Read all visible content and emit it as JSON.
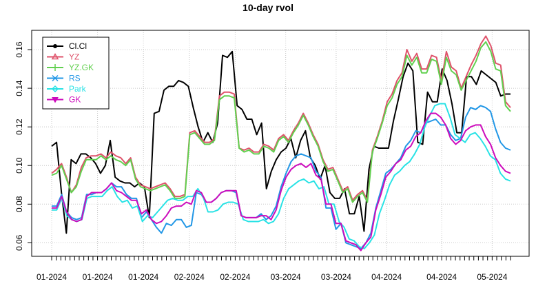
{
  "chart_data": {
    "type": "line",
    "title": "10-day rvol",
    "xlabel": "",
    "ylabel": "",
    "ylim": [
      0.053,
      0.17
    ],
    "grid": true,
    "legend_position": "top-left",
    "yticks": [
      0.06,
      0.08,
      0.1,
      0.12,
      0.14,
      0.16
    ],
    "ytick_labels": [
      "0.06",
      "0.08",
      "0.10",
      "0.12",
      "0.14",
      "0.16"
    ],
    "xtick_labels": [
      "01-2024",
      "01-2024",
      "01-2024",
      "02-2024",
      "02-2024",
      "03-2024",
      "03-2024",
      "04-2024",
      "04-2024",
      "05-2024"
    ],
    "xtick_label_positions": [
      0,
      10,
      20,
      30,
      40,
      51,
      62,
      73,
      85,
      96
    ],
    "minor_tick_count": 101,
    "series": [
      {
        "name": "Cl.Cl",
        "color": "#000000",
        "symbol": "circle",
        "values": [
          0.11,
          0.112,
          0.086,
          0.065,
          0.103,
          0.101,
          0.106,
          0.106,
          0.104,
          0.101,
          0.096,
          0.1,
          0.113,
          0.094,
          0.092,
          0.091,
          0.091,
          0.089,
          0.091,
          0.089,
          0.073,
          0.127,
          0.128,
          0.139,
          0.141,
          0.141,
          0.144,
          0.143,
          0.141,
          0.13,
          0.12,
          0.112,
          0.117,
          0.112,
          0.122,
          0.157,
          0.156,
          0.159,
          0.131,
          0.129,
          0.124,
          0.124,
          0.116,
          0.122,
          0.088,
          0.097,
          0.103,
          0.107,
          0.109,
          0.114,
          0.104,
          0.113,
          0.118,
          0.104,
          0.1,
          0.093,
          0.1,
          0.086,
          0.083,
          0.083,
          0.088,
          0.075,
          0.075,
          0.084,
          0.066,
          0.098,
          0.11,
          0.109,
          0.109,
          0.109,
          0.123,
          0.134,
          0.146,
          0.153,
          0.149,
          0.112,
          0.111,
          0.138,
          0.133,
          0.133,
          0.15,
          0.144,
          0.132,
          0.117,
          0.117,
          0.146,
          0.146,
          0.142,
          0.149,
          0.147,
          0.145,
          0.143,
          0.136,
          0.137,
          0.137
        ]
      },
      {
        "name": "YZ",
        "color": "#DF536B",
        "symbol": "triangle-up",
        "values": [
          0.096,
          0.098,
          0.101,
          0.094,
          0.086,
          0.09,
          0.099,
          0.104,
          0.105,
          0.105,
          0.106,
          0.104,
          0.107,
          0.105,
          0.104,
          0.101,
          0.104,
          0.094,
          0.09,
          0.089,
          0.088,
          0.089,
          0.09,
          0.091,
          0.088,
          0.084,
          0.084,
          0.085,
          0.117,
          0.118,
          0.115,
          0.112,
          0.112,
          0.114,
          0.136,
          0.138,
          0.138,
          0.137,
          0.109,
          0.108,
          0.109,
          0.107,
          0.107,
          0.111,
          0.11,
          0.108,
          0.114,
          0.116,
          0.113,
          0.118,
          0.122,
          0.127,
          0.122,
          0.116,
          0.111,
          0.103,
          0.098,
          0.099,
          0.093,
          0.087,
          0.089,
          0.082,
          0.085,
          0.087,
          0.082,
          0.108,
          0.115,
          0.123,
          0.133,
          0.137,
          0.144,
          0.148,
          0.16,
          0.154,
          0.158,
          0.15,
          0.15,
          0.157,
          0.156,
          0.144,
          0.159,
          0.151,
          0.149,
          0.14,
          0.146,
          0.152,
          0.157,
          0.163,
          0.167,
          0.162,
          0.153,
          0.152,
          0.133,
          0.13
        ]
      },
      {
        "name": "YZ.GK",
        "color": "#61D04F",
        "symbol": "plus",
        "values": [
          0.095,
          0.096,
          0.1,
          0.093,
          0.086,
          0.089,
          0.097,
          0.103,
          0.103,
          0.103,
          0.105,
          0.103,
          0.105,
          0.103,
          0.102,
          0.1,
          0.103,
          0.093,
          0.089,
          0.088,
          0.087,
          0.088,
          0.089,
          0.09,
          0.087,
          0.083,
          0.083,
          0.084,
          0.116,
          0.117,
          0.114,
          0.111,
          0.111,
          0.113,
          0.134,
          0.136,
          0.136,
          0.135,
          0.109,
          0.107,
          0.108,
          0.106,
          0.106,
          0.11,
          0.109,
          0.107,
          0.113,
          0.115,
          0.112,
          0.117,
          0.121,
          0.126,
          0.121,
          0.115,
          0.11,
          0.102,
          0.097,
          0.098,
          0.092,
          0.086,
          0.088,
          0.081,
          0.084,
          0.086,
          0.081,
          0.107,
          0.114,
          0.122,
          0.131,
          0.135,
          0.142,
          0.146,
          0.157,
          0.152,
          0.156,
          0.148,
          0.148,
          0.155,
          0.154,
          0.142,
          0.156,
          0.149,
          0.147,
          0.139,
          0.144,
          0.149,
          0.154,
          0.161,
          0.164,
          0.159,
          0.15,
          0.149,
          0.131,
          0.128
        ]
      },
      {
        "name": "RS",
        "color": "#2297E6",
        "symbol": "cross",
        "values": [
          0.079,
          0.079,
          0.085,
          0.076,
          0.073,
          0.072,
          0.073,
          0.085,
          0.085,
          0.086,
          0.086,
          0.088,
          0.091,
          0.089,
          0.089,
          0.085,
          0.083,
          0.083,
          0.073,
          0.076,
          0.072,
          0.068,
          0.065,
          0.07,
          0.069,
          0.072,
          0.072,
          0.068,
          0.069,
          0.086,
          0.085,
          0.081,
          0.081,
          0.083,
          0.086,
          0.087,
          0.087,
          0.086,
          0.074,
          0.073,
          0.073,
          0.073,
          0.075,
          0.072,
          0.074,
          0.079,
          0.089,
          0.096,
          0.102,
          0.105,
          0.106,
          0.105,
          0.104,
          0.097,
          0.094,
          0.078,
          0.078,
          0.067,
          0.07,
          0.06,
          0.059,
          0.058,
          0.057,
          0.06,
          0.065,
          0.078,
          0.087,
          0.096,
          0.098,
          0.101,
          0.104,
          0.11,
          0.113,
          0.118,
          0.117,
          0.122,
          0.123,
          0.124,
          0.121,
          0.121,
          0.116,
          0.113,
          0.114,
          0.125,
          0.13,
          0.129,
          0.131,
          0.13,
          0.128,
          0.119,
          0.112,
          0.109,
          0.108
        ]
      },
      {
        "name": "Park",
        "color": "#28E2E5",
        "symbol": "diamond",
        "values": [
          0.077,
          0.077,
          0.083,
          0.074,
          0.072,
          0.071,
          0.072,
          0.083,
          0.084,
          0.084,
          0.084,
          0.087,
          0.089,
          0.084,
          0.081,
          0.082,
          0.078,
          0.079,
          0.071,
          0.074,
          0.073,
          0.076,
          0.079,
          0.082,
          0.083,
          0.082,
          0.082,
          0.084,
          0.084,
          0.088,
          0.084,
          0.076,
          0.076,
          0.077,
          0.08,
          0.081,
          0.081,
          0.08,
          0.072,
          0.071,
          0.071,
          0.071,
          0.072,
          0.07,
          0.071,
          0.075,
          0.083,
          0.088,
          0.09,
          0.092,
          0.093,
          0.091,
          0.092,
          0.088,
          0.089,
          0.08,
          0.08,
          0.071,
          0.068,
          0.062,
          0.061,
          0.058,
          0.057,
          0.06,
          0.064,
          0.075,
          0.082,
          0.09,
          0.095,
          0.097,
          0.1,
          0.102,
          0.106,
          0.111,
          0.12,
          0.126,
          0.131,
          0.132,
          0.132,
          0.125,
          0.116,
          0.114,
          0.112,
          0.116,
          0.117,
          0.114,
          0.11,
          0.105,
          0.103,
          0.096,
          0.093,
          0.092
        ]
      },
      {
        "name": "GK",
        "color": "#CD0BBC",
        "symbol": "triangle-down",
        "values": [
          0.078,
          0.078,
          0.084,
          0.076,
          0.072,
          0.071,
          0.072,
          0.084,
          0.086,
          0.086,
          0.086,
          0.088,
          0.091,
          0.087,
          0.086,
          0.084,
          0.082,
          0.082,
          0.075,
          0.077,
          0.072,
          0.07,
          0.071,
          0.074,
          0.078,
          0.079,
          0.079,
          0.081,
          0.08,
          0.087,
          0.086,
          0.081,
          0.081,
          0.083,
          0.086,
          0.087,
          0.087,
          0.087,
          0.074,
          0.073,
          0.073,
          0.073,
          0.074,
          0.074,
          0.072,
          0.077,
          0.087,
          0.094,
          0.098,
          0.1,
          0.101,
          0.099,
          0.101,
          0.095,
          0.093,
          0.08,
          0.08,
          0.07,
          0.07,
          0.061,
          0.06,
          0.059,
          0.056,
          0.06,
          0.063,
          0.077,
          0.085,
          0.094,
          0.097,
          0.101,
          0.103,
          0.108,
          0.11,
          0.115,
          0.117,
          0.123,
          0.127,
          0.127,
          0.125,
          0.121,
          0.114,
          0.111,
          0.113,
          0.118,
          0.12,
          0.121,
          0.121,
          0.115,
          0.111,
          0.104,
          0.1,
          0.097,
          0.096
        ]
      }
    ]
  }
}
